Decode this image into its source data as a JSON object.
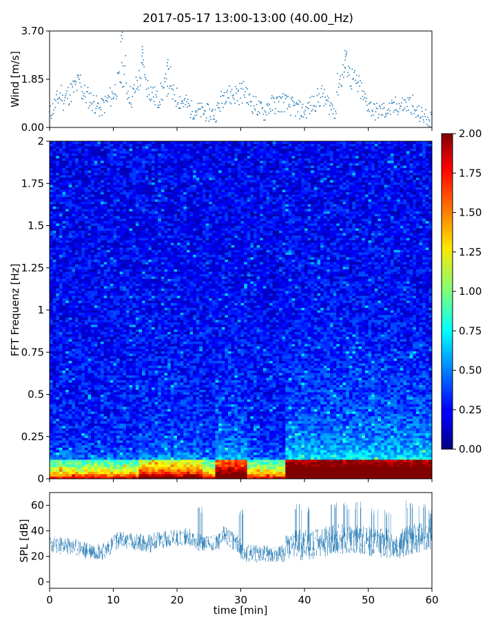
{
  "chart_data": {
    "title": "2017-05-17 13:00-13:00 (40.00_Hz)",
    "xlabel": "time [min]",
    "xlim": [
      0,
      60
    ],
    "xticks": [
      "0",
      "10",
      "20",
      "30",
      "40",
      "50",
      "60"
    ],
    "panels": [
      {
        "type": "scatter",
        "name": "wind",
        "ylabel": "Wind [m/s]",
        "ylim": [
          0,
          3.7
        ],
        "yticks": [
          "0.00",
          "1.85",
          "3.70"
        ],
        "color": "#1f77b4",
        "segments": [
          {
            "t0": 0,
            "t1": 2,
            "v0": 0.5,
            "v1": 1.4
          },
          {
            "t0": 2,
            "t1": 5,
            "v0": 1.0,
            "v1": 1.8
          },
          {
            "t0": 5,
            "t1": 8,
            "v0": 1.4,
            "v1": 0.7
          },
          {
            "t0": 8,
            "t1": 10,
            "v0": 0.7,
            "v1": 1.3
          },
          {
            "t0": 10,
            "t1": 12,
            "v0": 1.3,
            "v1": 2.3
          },
          {
            "t0": 12,
            "t1": 13,
            "v0": 1.5,
            "v1": 1.1
          },
          {
            "t0": 13,
            "t1": 15,
            "v0": 1.2,
            "v1": 2.4
          },
          {
            "t0": 15,
            "t1": 17,
            "v0": 1.7,
            "v1": 1.0
          },
          {
            "t0": 17,
            "t1": 19,
            "v0": 1.1,
            "v1": 1.9
          },
          {
            "t0": 19,
            "t1": 22,
            "v0": 1.3,
            "v1": 0.8
          },
          {
            "t0": 22,
            "t1": 26,
            "v0": 0.7,
            "v1": 0.5
          },
          {
            "t0": 26,
            "t1": 28,
            "v0": 0.5,
            "v1": 1.6
          },
          {
            "t0": 28,
            "t1": 31,
            "v0": 1.2,
            "v1": 1.4
          },
          {
            "t0": 31,
            "t1": 34,
            "v0": 1.1,
            "v1": 0.5
          },
          {
            "t0": 34,
            "t1": 37,
            "v0": 0.8,
            "v1": 1.0
          },
          {
            "t0": 37,
            "t1": 40,
            "v0": 0.9,
            "v1": 0.6
          },
          {
            "t0": 40,
            "t1": 43,
            "v0": 0.6,
            "v1": 1.3
          },
          {
            "t0": 43,
            "t1": 45,
            "v0": 1.1,
            "v1": 0.6
          },
          {
            "t0": 45,
            "t1": 47,
            "v0": 1.5,
            "v1": 2.6
          },
          {
            "t0": 47,
            "t1": 49,
            "v0": 2.0,
            "v1": 1.4
          },
          {
            "t0": 49,
            "t1": 51,
            "v0": 1.2,
            "v1": 0.6
          },
          {
            "t0": 51,
            "t1": 54,
            "v0": 0.6,
            "v1": 0.7
          },
          {
            "t0": 54,
            "t1": 57,
            "v0": 0.8,
            "v1": 0.9
          },
          {
            "t0": 57,
            "t1": 60,
            "v0": 0.6,
            "v1": 0.3
          }
        ],
        "peaks": [
          {
            "t": 11.3,
            "v": 3.65
          },
          {
            "t": 14.6,
            "v": 3.1
          },
          {
            "t": 46.5,
            "v": 2.95
          },
          {
            "t": 18.6,
            "v": 2.6
          }
        ]
      },
      {
        "type": "heatmap",
        "name": "spectrogram",
        "ylabel": "FFT Frequenz [Hz]",
        "ylim": [
          0,
          2
        ],
        "yticks": [
          "0",
          "0.25",
          "0.5",
          "0.75",
          "1",
          "1.25",
          "1.5",
          "1.75",
          "2"
        ],
        "colormap": "jet",
        "clim": [
          0,
          2
        ],
        "colorbar_ticks": [
          "0.00",
          "0.25",
          "0.50",
          "0.75",
          "1.00",
          "1.25",
          "1.50",
          "1.75",
          "2.00"
        ]
      },
      {
        "type": "line",
        "name": "spl",
        "ylabel": "SPL [dB]",
        "ylim": [
          -5,
          70
        ],
        "yticks": [
          "0",
          "20",
          "40",
          "60"
        ],
        "color": "#1f77b4",
        "segments": [
          {
            "t0": 0,
            "t1": 5,
            "v0": 30,
            "v1": 26
          },
          {
            "t0": 5,
            "t1": 9,
            "v0": 25,
            "v1": 24
          },
          {
            "t0": 9,
            "t1": 11,
            "v0": 26,
            "v1": 34
          },
          {
            "t0": 11,
            "t1": 16,
            "v0": 33,
            "v1": 30
          },
          {
            "t0": 16,
            "t1": 22,
            "v0": 32,
            "v1": 36
          },
          {
            "t0": 22,
            "t1": 24,
            "v0": 34,
            "v1": 30
          },
          {
            "t0": 24,
            "t1": 27,
            "v0": 30,
            "v1": 32
          },
          {
            "t0": 27,
            "t1": 30,
            "v0": 38,
            "v1": 28
          },
          {
            "t0": 30,
            "t1": 31,
            "v0": 24,
            "v1": 22
          },
          {
            "t0": 31,
            "t1": 37,
            "v0": 22,
            "v1": 22
          },
          {
            "t0": 37,
            "t1": 42,
            "v0": 28,
            "v1": 30
          },
          {
            "t0": 42,
            "t1": 45,
            "v0": 30,
            "v1": 34
          },
          {
            "t0": 45,
            "t1": 50,
            "v0": 34,
            "v1": 32
          },
          {
            "t0": 50,
            "t1": 55,
            "v0": 32,
            "v1": 30
          },
          {
            "t0": 55,
            "t1": 60,
            "v0": 30,
            "v1": 38
          }
        ],
        "bursts": [
          {
            "t": 39,
            "v": 62
          },
          {
            "t": 44.5,
            "v": 64
          },
          {
            "t": 46.5,
            "v": 62
          },
          {
            "t": 48.5,
            "v": 63
          },
          {
            "t": 51,
            "v": 58
          },
          {
            "t": 53,
            "v": 57
          },
          {
            "t": 56.5,
            "v": 64
          },
          {
            "t": 58.5,
            "v": 62
          },
          {
            "t": 59.5,
            "v": 58
          },
          {
            "t": 23.6,
            "v": 60
          },
          {
            "t": 29.8,
            "v": 59
          },
          {
            "t": 40.8,
            "v": 60
          }
        ]
      }
    ]
  }
}
